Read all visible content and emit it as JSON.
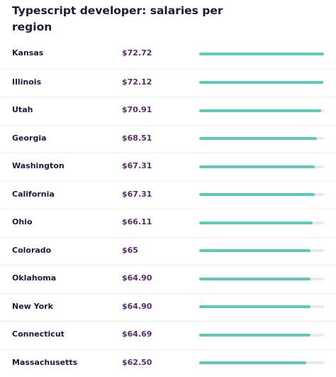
{
  "chart_data": {
    "type": "bar",
    "title": "Typescript developer: salaries per region",
    "categories": [
      "Kansas",
      "Illinois",
      "Utah",
      "Georgia",
      "Washington",
      "California",
      "Ohio",
      "Colorado",
      "Oklahoma",
      "New York",
      "Connecticut",
      "Massachusetts"
    ],
    "value_labels": [
      "$72.72",
      "$72.12",
      "$70.91",
      "$68.51",
      "$67.31",
      "$67.31",
      "$66.11",
      "$65",
      "$64.90",
      "$64.90",
      "$64.69",
      "$62.50"
    ],
    "values": [
      72.72,
      72.12,
      70.91,
      68.51,
      67.31,
      67.31,
      66.11,
      65,
      64.9,
      64.9,
      64.69,
      62.5
    ],
    "xlim": [
      0,
      72.72
    ],
    "colors": {
      "bar": "#5bcbb8",
      "track": "#e9e9ec",
      "value_text": "#5a2a6e",
      "label_text": "#22163f"
    }
  }
}
